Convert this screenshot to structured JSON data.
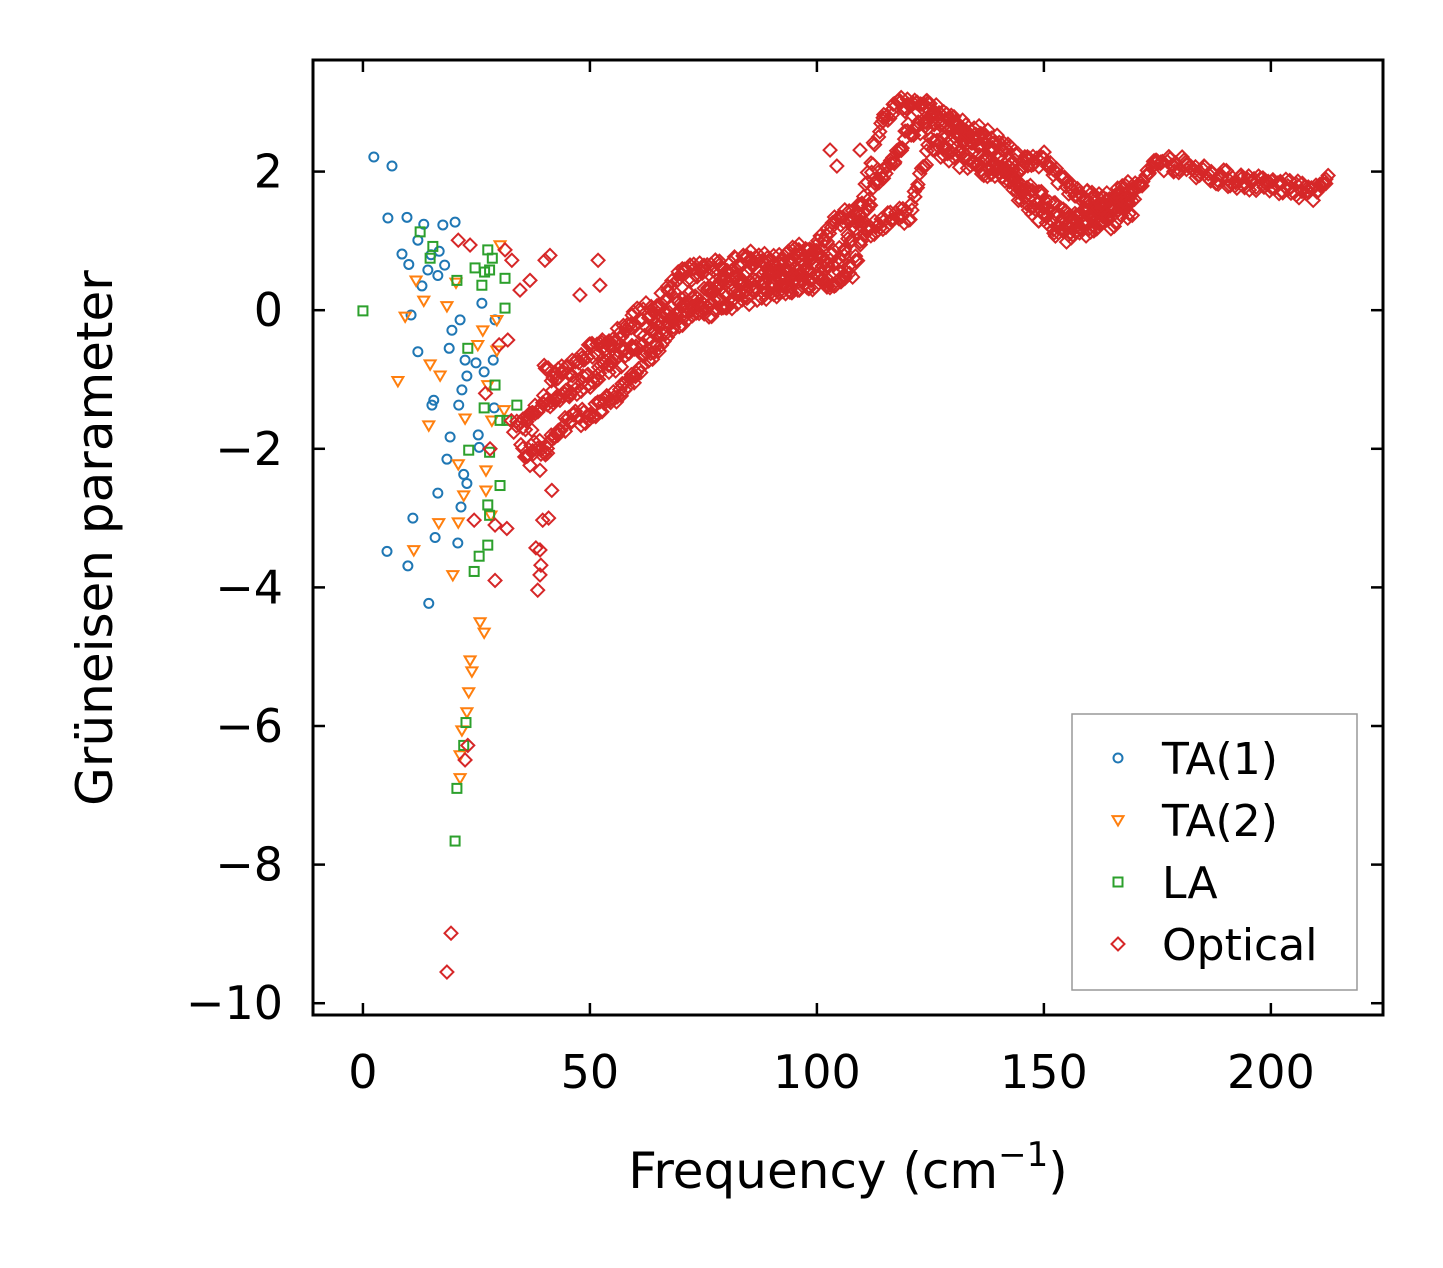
{
  "chart_data": {
    "type": "scatter",
    "title": "",
    "xlabel": "Frequency (cm",
    "xlabel_sup": "−1",
    "xlabel_end": ")",
    "ylabel": "Grüneisen parameter",
    "xlim": [
      -11,
      224.7
    ],
    "ylim": [
      -10.17,
      3.61
    ],
    "xticks": [
      0,
      50,
      100,
      150,
      200
    ],
    "xtick_labels": [
      "0",
      "50",
      "100",
      "150",
      "200"
    ],
    "yticks": [
      -10,
      -8,
      -6,
      -4,
      -2,
      0,
      2
    ],
    "ytick_labels": [
      "−10",
      "−8",
      "−6",
      "−4",
      "−2",
      "0",
      "2"
    ],
    "grid": false,
    "legend_placement": "lower-right",
    "series": [
      {
        "name": "TA(1)",
        "marker": "circle",
        "color": "#1f77b4",
        "points": [
          [
            2.4,
            2.21
          ],
          [
            6.4,
            2.08
          ],
          [
            5.5,
            1.33
          ],
          [
            9.7,
            1.34
          ],
          [
            13.4,
            1.24
          ],
          [
            17.6,
            1.23
          ],
          [
            20.3,
            1.27
          ],
          [
            8.6,
            0.81
          ],
          [
            10.1,
            0.66
          ],
          [
            12.1,
            1.01
          ],
          [
            14.3,
            0.58
          ],
          [
            16.5,
            0.5
          ],
          [
            18,
            0.65
          ],
          [
            10.6,
            -0.07
          ],
          [
            12.1,
            -0.6
          ],
          [
            19.6,
            -0.29
          ],
          [
            21.4,
            -0.14
          ],
          [
            19,
            -0.55
          ],
          [
            15.6,
            -1.3
          ],
          [
            15.2,
            -1.37
          ],
          [
            21.1,
            -1.37
          ],
          [
            21.8,
            -1.15
          ],
          [
            22.9,
            -0.95
          ],
          [
            19.2,
            -1.83
          ],
          [
            18.5,
            -2.15
          ],
          [
            22.2,
            -2.37
          ],
          [
            22.9,
            -2.5
          ],
          [
            16.5,
            -2.64
          ],
          [
            21.6,
            -2.84
          ],
          [
            11,
            -3.0
          ],
          [
            15.9,
            -3.28
          ],
          [
            20.9,
            -3.36
          ],
          [
            5.3,
            -3.48
          ],
          [
            9.9,
            -3.69
          ],
          [
            14.5,
            -4.23
          ],
          [
            24.9,
            -0.76
          ],
          [
            26.7,
            -0.89
          ],
          [
            25.4,
            -1.8
          ],
          [
            26.2,
            0.1
          ],
          [
            29.1,
            -0.14
          ],
          [
            28.7,
            -0.72
          ],
          [
            28.9,
            -1.41
          ],
          [
            25.6,
            -1.98
          ],
          [
            22.5,
            -0.72
          ],
          [
            15.0,
            0.8
          ],
          [
            16.8,
            0.85
          ],
          [
            13.0,
            0.35
          ]
        ]
      },
      {
        "name": "TA(2)",
        "marker": "triangle-down",
        "color": "#ff7f0e",
        "points": [
          [
            7.7,
            -1.02
          ],
          [
            11.7,
            0.43
          ],
          [
            13.4,
            0.14
          ],
          [
            9.3,
            -0.09
          ],
          [
            14.8,
            -0.78
          ],
          [
            14.5,
            -1.66
          ],
          [
            11.2,
            -3.46
          ],
          [
            16.7,
            -3.07
          ],
          [
            19.8,
            -3.82
          ],
          [
            17,
            -0.94
          ],
          [
            18.5,
            0.06
          ],
          [
            20.5,
            0.4
          ],
          [
            22.5,
            -1.56
          ],
          [
            21,
            -2.22
          ],
          [
            22.2,
            -2.67
          ],
          [
            21,
            -3.06
          ],
          [
            23.6,
            -5.05
          ],
          [
            24,
            -5.21
          ],
          [
            23.3,
            -5.51
          ],
          [
            22.9,
            -5.8
          ],
          [
            21.8,
            -6.06
          ],
          [
            21.4,
            -6.42
          ],
          [
            21.4,
            -6.75
          ],
          [
            25.8,
            -4.5
          ],
          [
            26.7,
            -4.65
          ],
          [
            27.1,
            -2.6
          ],
          [
            27.1,
            -2.31
          ],
          [
            27.5,
            -1.08
          ],
          [
            26.4,
            -0.29
          ],
          [
            25.3,
            -0.5
          ],
          [
            29.5,
            -0.14
          ],
          [
            30.2,
            0.94
          ],
          [
            29.5,
            -0.58
          ],
          [
            28.4,
            -1.59
          ],
          [
            28.2,
            -2.96
          ],
          [
            31.1,
            -1.44
          ]
        ]
      },
      {
        "name": "LA",
        "marker": "square",
        "color": "#2ca02c",
        "points": [
          [
            0,
            -0.01
          ],
          [
            12.6,
            1.13
          ],
          [
            15.4,
            0.92
          ],
          [
            14.8,
            0.75
          ],
          [
            20.7,
            0.43
          ],
          [
            24.7,
            0.61
          ],
          [
            27.5,
            0.87
          ],
          [
            27.9,
            0.58
          ],
          [
            26.2,
            0.36
          ],
          [
            31.3,
            0.46
          ],
          [
            31.3,
            0.03
          ],
          [
            23.1,
            -0.55
          ],
          [
            26.7,
            -1.41
          ],
          [
            29.1,
            -1.08
          ],
          [
            30.2,
            -1.59
          ],
          [
            23.3,
            -2.02
          ],
          [
            27.9,
            -2.05
          ],
          [
            30.2,
            -2.53
          ],
          [
            27.5,
            -2.81
          ],
          [
            27.9,
            -2.96
          ],
          [
            27.5,
            -3.39
          ],
          [
            25.6,
            -3.55
          ],
          [
            24.5,
            -3.77
          ],
          [
            22.7,
            -5.95
          ],
          [
            22.2,
            -6.28
          ],
          [
            20.7,
            -6.9
          ],
          [
            20.3,
            -7.66
          ],
          [
            31.7,
            -1.59
          ],
          [
            33.9,
            -1.37
          ],
          [
            28.5,
            0.75
          ],
          [
            26.8,
            0.55
          ]
        ]
      },
      {
        "name": "Optical",
        "marker": "diamond",
        "color": "#d62728",
        "points": [
          [
            18.5,
            -9.55
          ],
          [
            19.4,
            -8.99
          ],
          [
            22.5,
            -6.49
          ],
          [
            23.1,
            -6.28
          ],
          [
            21,
            1.01
          ],
          [
            23.6,
            0.94
          ],
          [
            24.5,
            -3.03
          ],
          [
            29.1,
            -3.1
          ],
          [
            29.1,
            -3.9
          ],
          [
            31.7,
            -3.15
          ],
          [
            38.5,
            -4.04
          ],
          [
            39,
            -3.82
          ],
          [
            39.2,
            -3.68
          ],
          [
            39,
            -3.46
          ],
          [
            38.1,
            -3.43
          ],
          [
            39.6,
            -3.03
          ],
          [
            40.9,
            -3.0
          ],
          [
            41.6,
            -2.6
          ],
          [
            39,
            -2.31
          ],
          [
            36.8,
            -2.24
          ],
          [
            37.2,
            -1.73
          ],
          [
            31.9,
            -0.43
          ],
          [
            32.8,
            0.72
          ],
          [
            31.3,
            0.87
          ],
          [
            34.6,
            0.29
          ],
          [
            36.8,
            0.43
          ],
          [
            40.1,
            0.72
          ],
          [
            41.2,
            0.79
          ],
          [
            51.8,
            0.72
          ],
          [
            47.8,
            0.22
          ],
          [
            52.2,
            0.36
          ],
          [
            102.9,
            2.31
          ],
          [
            104.4,
            2.08
          ],
          [
            109.5,
            2.31
          ],
          [
            27,
            -1.2
          ],
          [
            28,
            -2.0
          ],
          [
            30,
            -0.5
          ]
        ],
        "bands": [
          [
            [
              33,
              -1.7
            ],
            [
              36,
              -1.6
            ],
            [
              40,
              -1.3
            ],
            [
              45,
              -1.2
            ],
            [
              50,
              -1.0
            ],
            [
              55,
              -0.8
            ],
            [
              60,
              -0.5
            ],
            [
              65,
              -0.2
            ],
            [
              70,
              0.1
            ],
            [
              75,
              0.2
            ],
            [
              80,
              0.35
            ],
            [
              85,
              0.5
            ],
            [
              90,
              0.5
            ],
            [
              95,
              0.6
            ],
            [
              100,
              0.7
            ],
            [
              105,
              0.8
            ],
            [
              108,
              1.1
            ],
            [
              110,
              1.3
            ],
            [
              113,
              1.8
            ],
            [
              115,
              2.0
            ],
            [
              118,
              2.3
            ],
            [
              120,
              2.6
            ],
            [
              122,
              2.6
            ],
            [
              125,
              2.8
            ],
            [
              128,
              2.6
            ],
            [
              132,
              2.5
            ],
            [
              136,
              2.3
            ],
            [
              140,
              2.2
            ],
            [
              145,
              1.8
            ],
            [
              150,
              1.6
            ],
            [
              155,
              1.3
            ],
            [
              160,
              1.4
            ],
            [
              165,
              1.5
            ],
            [
              170,
              1.7
            ],
            [
              175,
              2.15
            ],
            [
              180,
              2.1
            ],
            [
              185,
              2.0
            ],
            [
              190,
              1.9
            ],
            [
              195,
              1.85
            ],
            [
              200,
              1.8
            ],
            [
              205,
              1.75
            ],
            [
              210,
              1.7
            ],
            [
              213,
              1.85
            ]
          ],
          [
            [
              35,
              -2.0
            ],
            [
              40,
              -2.0
            ],
            [
              45,
              -1.6
            ],
            [
              50,
              -1.5
            ],
            [
              55,
              -1.3
            ],
            [
              60,
              -0.9
            ],
            [
              65,
              -0.5
            ],
            [
              70,
              -0.1
            ],
            [
              75,
              0.0
            ],
            [
              80,
              0.1
            ],
            [
              85,
              0.2
            ],
            [
              90,
              0.3
            ],
            [
              95,
              0.35
            ],
            [
              100,
              0.4
            ],
            [
              105,
              0.45
            ],
            [
              108,
              0.6
            ],
            [
              110,
              1.0
            ],
            [
              115,
              1.3
            ],
            [
              118,
              1.4
            ],
            [
              120,
              1.3
            ],
            [
              125,
              2.4
            ],
            [
              130,
              2.2
            ],
            [
              140,
              2.0
            ],
            [
              150,
              1.3
            ],
            [
              155,
              1.1
            ],
            [
              160,
              1.2
            ],
            [
              165,
              1.3
            ],
            [
              170,
              1.5
            ]
          ],
          [
            [
              40,
              -0.9
            ],
            [
              45,
              -0.9
            ],
            [
              50,
              -0.6
            ],
            [
              55,
              -0.4
            ],
            [
              60,
              -0.1
            ],
            [
              65,
              0.1
            ],
            [
              70,
              0.5
            ],
            [
              75,
              0.6
            ],
            [
              80,
              0.6
            ],
            [
              85,
              0.8
            ],
            [
              90,
              0.7
            ],
            [
              95,
              0.8
            ],
            [
              100,
              0.9
            ],
            [
              105,
              1.3
            ],
            [
              110,
              1.5
            ],
            [
              113,
              2.4
            ],
            [
              115,
              2.8
            ],
            [
              120,
              3.0
            ],
            [
              125,
              2.9
            ],
            [
              130,
              2.7
            ],
            [
              135,
              2.6
            ],
            [
              140,
              2.4
            ],
            [
              145,
              2.1
            ],
            [
              150,
              2.2
            ],
            [
              155,
              1.8
            ],
            [
              160,
              1.6
            ],
            [
              165,
              1.6
            ],
            [
              170,
              1.8
            ]
          ]
        ]
      }
    ]
  }
}
